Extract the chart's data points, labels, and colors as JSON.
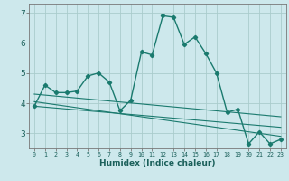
{
  "title": "",
  "xlabel": "Humidex (Indice chaleur)",
  "ylabel": "",
  "background_color": "#cde8ec",
  "grid_color": "#aacccc",
  "line_color": "#1a7a6e",
  "xlim": [
    -0.5,
    23.5
  ],
  "ylim": [
    2.5,
    7.3
  ],
  "yticks": [
    3,
    4,
    5,
    6,
    7
  ],
  "xticks": [
    0,
    1,
    2,
    3,
    4,
    5,
    6,
    7,
    8,
    9,
    10,
    11,
    12,
    13,
    14,
    15,
    16,
    17,
    18,
    19,
    20,
    21,
    22,
    23
  ],
  "series_x": [
    0,
    1,
    2,
    3,
    4,
    5,
    6,
    7,
    8,
    9,
    10,
    11,
    12,
    13,
    14,
    15,
    16,
    17,
    18,
    19,
    20,
    21,
    22,
    23
  ],
  "series_y": [
    3.9,
    4.6,
    4.35,
    4.35,
    4.4,
    4.9,
    5.0,
    4.7,
    3.75,
    4.1,
    5.7,
    5.6,
    6.9,
    6.85,
    5.95,
    6.2,
    5.65,
    5.0,
    3.7,
    3.8,
    2.65,
    3.05,
    2.65,
    2.8
  ],
  "trend1_x": [
    0,
    23
  ],
  "trend1_y": [
    4.3,
    3.55
  ],
  "trend2_x": [
    0,
    23
  ],
  "trend2_y": [
    4.05,
    2.9
  ],
  "trend3_x": [
    0,
    23
  ],
  "trend3_y": [
    3.9,
    3.2
  ]
}
